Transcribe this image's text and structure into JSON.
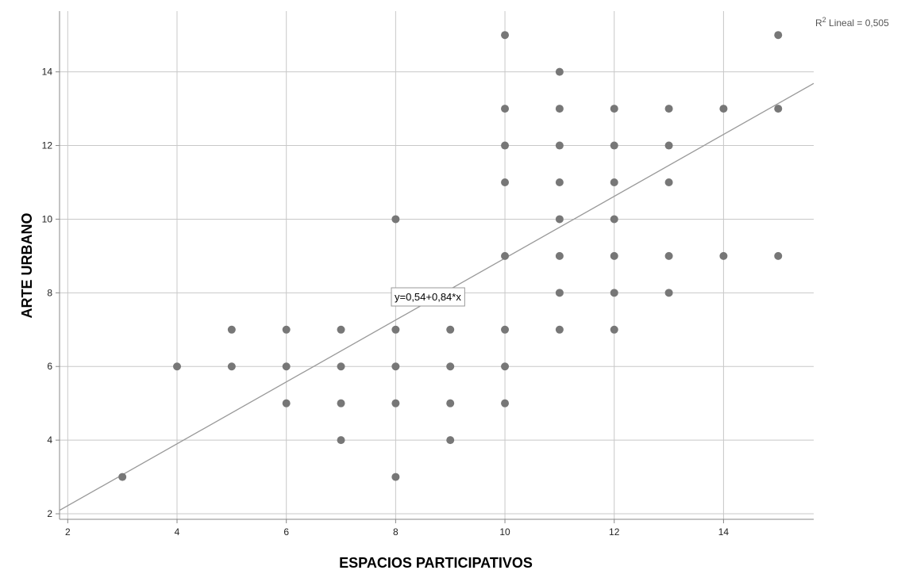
{
  "chart_data": {
    "type": "scatter",
    "xlabel": "ESPACIOS PARTICIPATIVOS",
    "ylabel": "ARTE URBANO",
    "xlim": [
      1.85,
      15.65
    ],
    "ylim": [
      1.85,
      15.65
    ],
    "x_ticks": [
      2,
      4,
      6,
      8,
      10,
      12,
      14
    ],
    "y_ticks": [
      2,
      4,
      6,
      8,
      10,
      12,
      14
    ],
    "grid": true,
    "points": [
      [
        3,
        3
      ],
      [
        4,
        6
      ],
      [
        5,
        6
      ],
      [
        5,
        7
      ],
      [
        6,
        5
      ],
      [
        6,
        6
      ],
      [
        6,
        7
      ],
      [
        7,
        4
      ],
      [
        7,
        5
      ],
      [
        7,
        6
      ],
      [
        7,
        7
      ],
      [
        8,
        3
      ],
      [
        8,
        5
      ],
      [
        8,
        6
      ],
      [
        8,
        7
      ],
      [
        8,
        10
      ],
      [
        9,
        4
      ],
      [
        9,
        5
      ],
      [
        9,
        6
      ],
      [
        9,
        7
      ],
      [
        10,
        5
      ],
      [
        10,
        6
      ],
      [
        10,
        7
      ],
      [
        10,
        9
      ],
      [
        10,
        11
      ],
      [
        10,
        12
      ],
      [
        10,
        13
      ],
      [
        10,
        15
      ],
      [
        11,
        7
      ],
      [
        11,
        8
      ],
      [
        11,
        9
      ],
      [
        11,
        10
      ],
      [
        11,
        11
      ],
      [
        11,
        12
      ],
      [
        11,
        13
      ],
      [
        11,
        14
      ],
      [
        12,
        7
      ],
      [
        12,
        8
      ],
      [
        12,
        9
      ],
      [
        12,
        10
      ],
      [
        12,
        11
      ],
      [
        12,
        12
      ],
      [
        12,
        13
      ],
      [
        13,
        8
      ],
      [
        13,
        9
      ],
      [
        13,
        11
      ],
      [
        13,
        12
      ],
      [
        13,
        13
      ],
      [
        14,
        9
      ],
      [
        14,
        13
      ],
      [
        15,
        9
      ],
      [
        15,
        13
      ],
      [
        15,
        15
      ]
    ],
    "fit_line": {
      "intercept": 0.54,
      "slope": 0.84,
      "label": "y=0,54+0,84*x"
    },
    "r2_label": {
      "prefix": "R",
      "superscript": "2",
      "text": " Lineal = 0,505"
    },
    "colors": {
      "point": "#777777",
      "grid": "#c8c8c8",
      "axis": "#888888",
      "fit": "#999999"
    }
  }
}
